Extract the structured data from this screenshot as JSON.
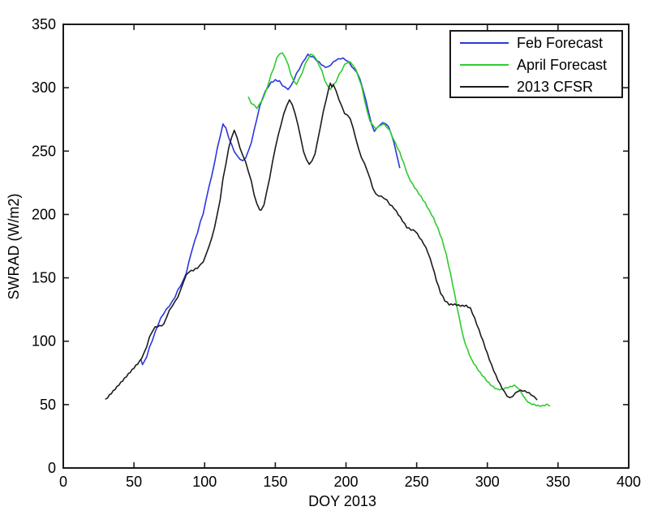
{
  "figure": {
    "background": "#ffffff",
    "frame_color": "#1a1a1a"
  },
  "chart_data": {
    "type": "line",
    "title": "",
    "xlabel": "DOY 2013",
    "ylabel": "SWRAD (W/m2)",
    "xlim": [
      0,
      400
    ],
    "ylim": [
      0,
      350
    ],
    "xticks": [
      0,
      50,
      100,
      150,
      200,
      250,
      300,
      350,
      400
    ],
    "yticks": [
      0,
      50,
      100,
      150,
      200,
      250,
      300,
      350
    ],
    "grid": false,
    "legend_position": "top-right",
    "series": [
      {
        "name": "Feb Forecast",
        "color": "#2b36de",
        "points": [
          [
            55,
            85
          ],
          [
            56,
            82
          ],
          [
            57,
            83
          ],
          [
            59,
            88
          ],
          [
            61,
            95
          ],
          [
            63,
            101
          ],
          [
            65,
            107
          ],
          [
            67,
            113
          ],
          [
            69,
            118
          ],
          [
            71,
            122
          ],
          [
            73,
            125
          ],
          [
            75,
            128
          ],
          [
            77,
            131
          ],
          [
            79,
            135
          ],
          [
            81,
            140
          ],
          [
            83,
            144
          ],
          [
            85,
            148
          ],
          [
            87,
            154
          ],
          [
            89,
            163
          ],
          [
            91,
            172
          ],
          [
            93,
            179
          ],
          [
            95,
            186
          ],
          [
            97,
            194
          ],
          [
            99,
            201
          ],
          [
            101,
            211
          ],
          [
            103,
            222
          ],
          [
            105,
            230
          ],
          [
            107,
            241
          ],
          [
            109,
            252
          ],
          [
            111,
            262
          ],
          [
            113,
            271
          ],
          [
            114,
            270
          ],
          [
            115,
            268
          ],
          [
            117,
            261
          ],
          [
            119,
            255
          ],
          [
            121,
            250
          ],
          [
            123,
            246
          ],
          [
            125,
            244
          ],
          [
            127,
            242
          ],
          [
            129,
            245
          ],
          [
            131,
            250
          ],
          [
            133,
            257
          ],
          [
            135,
            266
          ],
          [
            137,
            276
          ],
          [
            139,
            285
          ],
          [
            141,
            292
          ],
          [
            143,
            297
          ],
          [
            145,
            301
          ],
          [
            147,
            304
          ],
          [
            150,
            306
          ],
          [
            153,
            305
          ],
          [
            155,
            302
          ],
          [
            157,
            300
          ],
          [
            159,
            299
          ],
          [
            161,
            301
          ],
          [
            163,
            306
          ],
          [
            165,
            311
          ],
          [
            167,
            315
          ],
          [
            169,
            319
          ],
          [
            171,
            323
          ],
          [
            173,
            326
          ],
          [
            175,
            325
          ],
          [
            177,
            324
          ],
          [
            179,
            322
          ],
          [
            181,
            320
          ],
          [
            184,
            317
          ],
          [
            187,
            316
          ],
          [
            189,
            318
          ],
          [
            191,
            320
          ],
          [
            193,
            322
          ],
          [
            196,
            323
          ],
          [
            198,
            323
          ],
          [
            200,
            322
          ],
          [
            202,
            320
          ],
          [
            204,
            317
          ],
          [
            206,
            314
          ],
          [
            208,
            312
          ],
          [
            210,
            306
          ],
          [
            212,
            299
          ],
          [
            214,
            290
          ],
          [
            216,
            281
          ],
          [
            218,
            271
          ],
          [
            220,
            266
          ],
          [
            222,
            268
          ],
          [
            224,
            271
          ],
          [
            226,
            272
          ],
          [
            228,
            272
          ],
          [
            230,
            269
          ],
          [
            232,
            264
          ],
          [
            234,
            256
          ],
          [
            236,
            247
          ],
          [
            238,
            237
          ]
        ]
      },
      {
        "name": "April Forecast",
        "color": "#2ecc2e",
        "points": [
          [
            131,
            292
          ],
          [
            133,
            288
          ],
          [
            135,
            286
          ],
          [
            137,
            284
          ],
          [
            139,
            287
          ],
          [
            141,
            291
          ],
          [
            143,
            296
          ],
          [
            145,
            303
          ],
          [
            147,
            310
          ],
          [
            149,
            316
          ],
          [
            151,
            323
          ],
          [
            153,
            327
          ],
          [
            155,
            327
          ],
          [
            157,
            324
          ],
          [
            159,
            318
          ],
          [
            161,
            311
          ],
          [
            163,
            305
          ],
          [
            165,
            303
          ],
          [
            167,
            307
          ],
          [
            169,
            312
          ],
          [
            171,
            318
          ],
          [
            173,
            323
          ],
          [
            175,
            326
          ],
          [
            177,
            326
          ],
          [
            179,
            322
          ],
          [
            181,
            318
          ],
          [
            183,
            313
          ],
          [
            185,
            306
          ],
          [
            187,
            301
          ],
          [
            189,
            299
          ],
          [
            191,
            302
          ],
          [
            193,
            305
          ],
          [
            195,
            310
          ],
          [
            197,
            314
          ],
          [
            199,
            318
          ],
          [
            201,
            320
          ],
          [
            203,
            320
          ],
          [
            205,
            318
          ],
          [
            207,
            314
          ],
          [
            209,
            308
          ],
          [
            211,
            301
          ],
          [
            213,
            291
          ],
          [
            215,
            281
          ],
          [
            217,
            274
          ],
          [
            219,
            270
          ],
          [
            221,
            268
          ],
          [
            223,
            269
          ],
          [
            225,
            271
          ],
          [
            227,
            271
          ],
          [
            229,
            269
          ],
          [
            231,
            266
          ],
          [
            233,
            261
          ],
          [
            235,
            256
          ],
          [
            238,
            249
          ],
          [
            241,
            240
          ],
          [
            244,
            230
          ],
          [
            247,
            224
          ],
          [
            250,
            219
          ],
          [
            253,
            214
          ],
          [
            256,
            209
          ],
          [
            259,
            203
          ],
          [
            262,
            197
          ],
          [
            265,
            189
          ],
          [
            268,
            180
          ],
          [
            271,
            168
          ],
          [
            274,
            153
          ],
          [
            277,
            136
          ],
          [
            280,
            119
          ],
          [
            283,
            103
          ],
          [
            286,
            93
          ],
          [
            289,
            85
          ],
          [
            292,
            80
          ],
          [
            295,
            75
          ],
          [
            298,
            71
          ],
          [
            301,
            67
          ],
          [
            304,
            64
          ],
          [
            307,
            62
          ],
          [
            310,
            62
          ],
          [
            313,
            63
          ],
          [
            316,
            64
          ],
          [
            319,
            65
          ],
          [
            321,
            64
          ],
          [
            323,
            61
          ],
          [
            325,
            58
          ],
          [
            327,
            54
          ],
          [
            330,
            51
          ],
          [
            333,
            50
          ],
          [
            336,
            49
          ],
          [
            339,
            49
          ],
          [
            342,
            50
          ],
          [
            344,
            49
          ]
        ]
      },
      {
        "name": "2013 CFSR",
        "color": "#1b1b1b",
        "points": [
          [
            30,
            54
          ],
          [
            34,
            59
          ],
          [
            38,
            64
          ],
          [
            42,
            69
          ],
          [
            46,
            74
          ],
          [
            50,
            79
          ],
          [
            54,
            84
          ],
          [
            57,
            90
          ],
          [
            59,
            96
          ],
          [
            61,
            103
          ],
          [
            63,
            108
          ],
          [
            65,
            111
          ],
          [
            68,
            112
          ],
          [
            71,
            113
          ],
          [
            73,
            119
          ],
          [
            75,
            124
          ],
          [
            77,
            128
          ],
          [
            79,
            131
          ],
          [
            81,
            135
          ],
          [
            83,
            140
          ],
          [
            85,
            147
          ],
          [
            87,
            152
          ],
          [
            89,
            155
          ],
          [
            92,
            156
          ],
          [
            95,
            158
          ],
          [
            97,
            160
          ],
          [
            99,
            163
          ],
          [
            101,
            168
          ],
          [
            103,
            175
          ],
          [
            105,
            181
          ],
          [
            107,
            190
          ],
          [
            109,
            200
          ],
          [
            111,
            212
          ],
          [
            113,
            228
          ],
          [
            115,
            240
          ],
          [
            117,
            252
          ],
          [
            119,
            261
          ],
          [
            121,
            266
          ],
          [
            123,
            261
          ],
          [
            125,
            252
          ],
          [
            127,
            247
          ],
          [
            129,
            241
          ],
          [
            131,
            234
          ],
          [
            133,
            226
          ],
          [
            135,
            216
          ],
          [
            137,
            208
          ],
          [
            139,
            204
          ],
          [
            140,
            203
          ],
          [
            142,
            208
          ],
          [
            144,
            218
          ],
          [
            146,
            229
          ],
          [
            148,
            241
          ],
          [
            150,
            253
          ],
          [
            152,
            262
          ],
          [
            154,
            271
          ],
          [
            156,
            279
          ],
          [
            158,
            286
          ],
          [
            160,
            290
          ],
          [
            162,
            287
          ],
          [
            164,
            279
          ],
          [
            166,
            271
          ],
          [
            168,
            260
          ],
          [
            170,
            250
          ],
          [
            172,
            243
          ],
          [
            174,
            240
          ],
          [
            176,
            242
          ],
          [
            178,
            248
          ],
          [
            180,
            258
          ],
          [
            182,
            270
          ],
          [
            184,
            281
          ],
          [
            186,
            291
          ],
          [
            188,
            300
          ],
          [
            189,
            304
          ],
          [
            190,
            300
          ],
          [
            191,
            303
          ],
          [
            193,
            297
          ],
          [
            195,
            291
          ],
          [
            197,
            285
          ],
          [
            199,
            280
          ],
          [
            201,
            278
          ],
          [
            203,
            276
          ],
          [
            205,
            268
          ],
          [
            207,
            260
          ],
          [
            209,
            251
          ],
          [
            211,
            245
          ],
          [
            213,
            240
          ],
          [
            215,
            235
          ],
          [
            217,
            228
          ],
          [
            219,
            221
          ],
          [
            221,
            216
          ],
          [
            223,
            215
          ],
          [
            225,
            214
          ],
          [
            227,
            213
          ],
          [
            229,
            211
          ],
          [
            231,
            208
          ],
          [
            234,
            205
          ],
          [
            237,
            200
          ],
          [
            240,
            195
          ],
          [
            243,
            190
          ],
          [
            246,
            188
          ],
          [
            249,
            187
          ],
          [
            252,
            182
          ],
          [
            255,
            177
          ],
          [
            258,
            170
          ],
          [
            261,
            160
          ],
          [
            264,
            148
          ],
          [
            267,
            138
          ],
          [
            270,
            132
          ],
          [
            273,
            129
          ],
          [
            277,
            129
          ],
          [
            281,
            128
          ],
          [
            285,
            128
          ],
          [
            288,
            126
          ],
          [
            291,
            118
          ],
          [
            294,
            109
          ],
          [
            297,
            100
          ],
          [
            300,
            90
          ],
          [
            303,
            81
          ],
          [
            306,
            73
          ],
          [
            309,
            66
          ],
          [
            312,
            60
          ],
          [
            314,
            57
          ],
          [
            316,
            55
          ],
          [
            318,
            57
          ],
          [
            320,
            59
          ],
          [
            322,
            61
          ],
          [
            325,
            61
          ],
          [
            328,
            60
          ],
          [
            331,
            58
          ],
          [
            333,
            56
          ],
          [
            335,
            54
          ]
        ]
      }
    ]
  },
  "legend": {
    "entries": [
      {
        "label": "Feb Forecast",
        "color": "#2b36de"
      },
      {
        "label": "April Forecast",
        "color": "#2ecc2e"
      },
      {
        "label": "2013 CFSR",
        "color": "#1b1b1b"
      }
    ]
  }
}
